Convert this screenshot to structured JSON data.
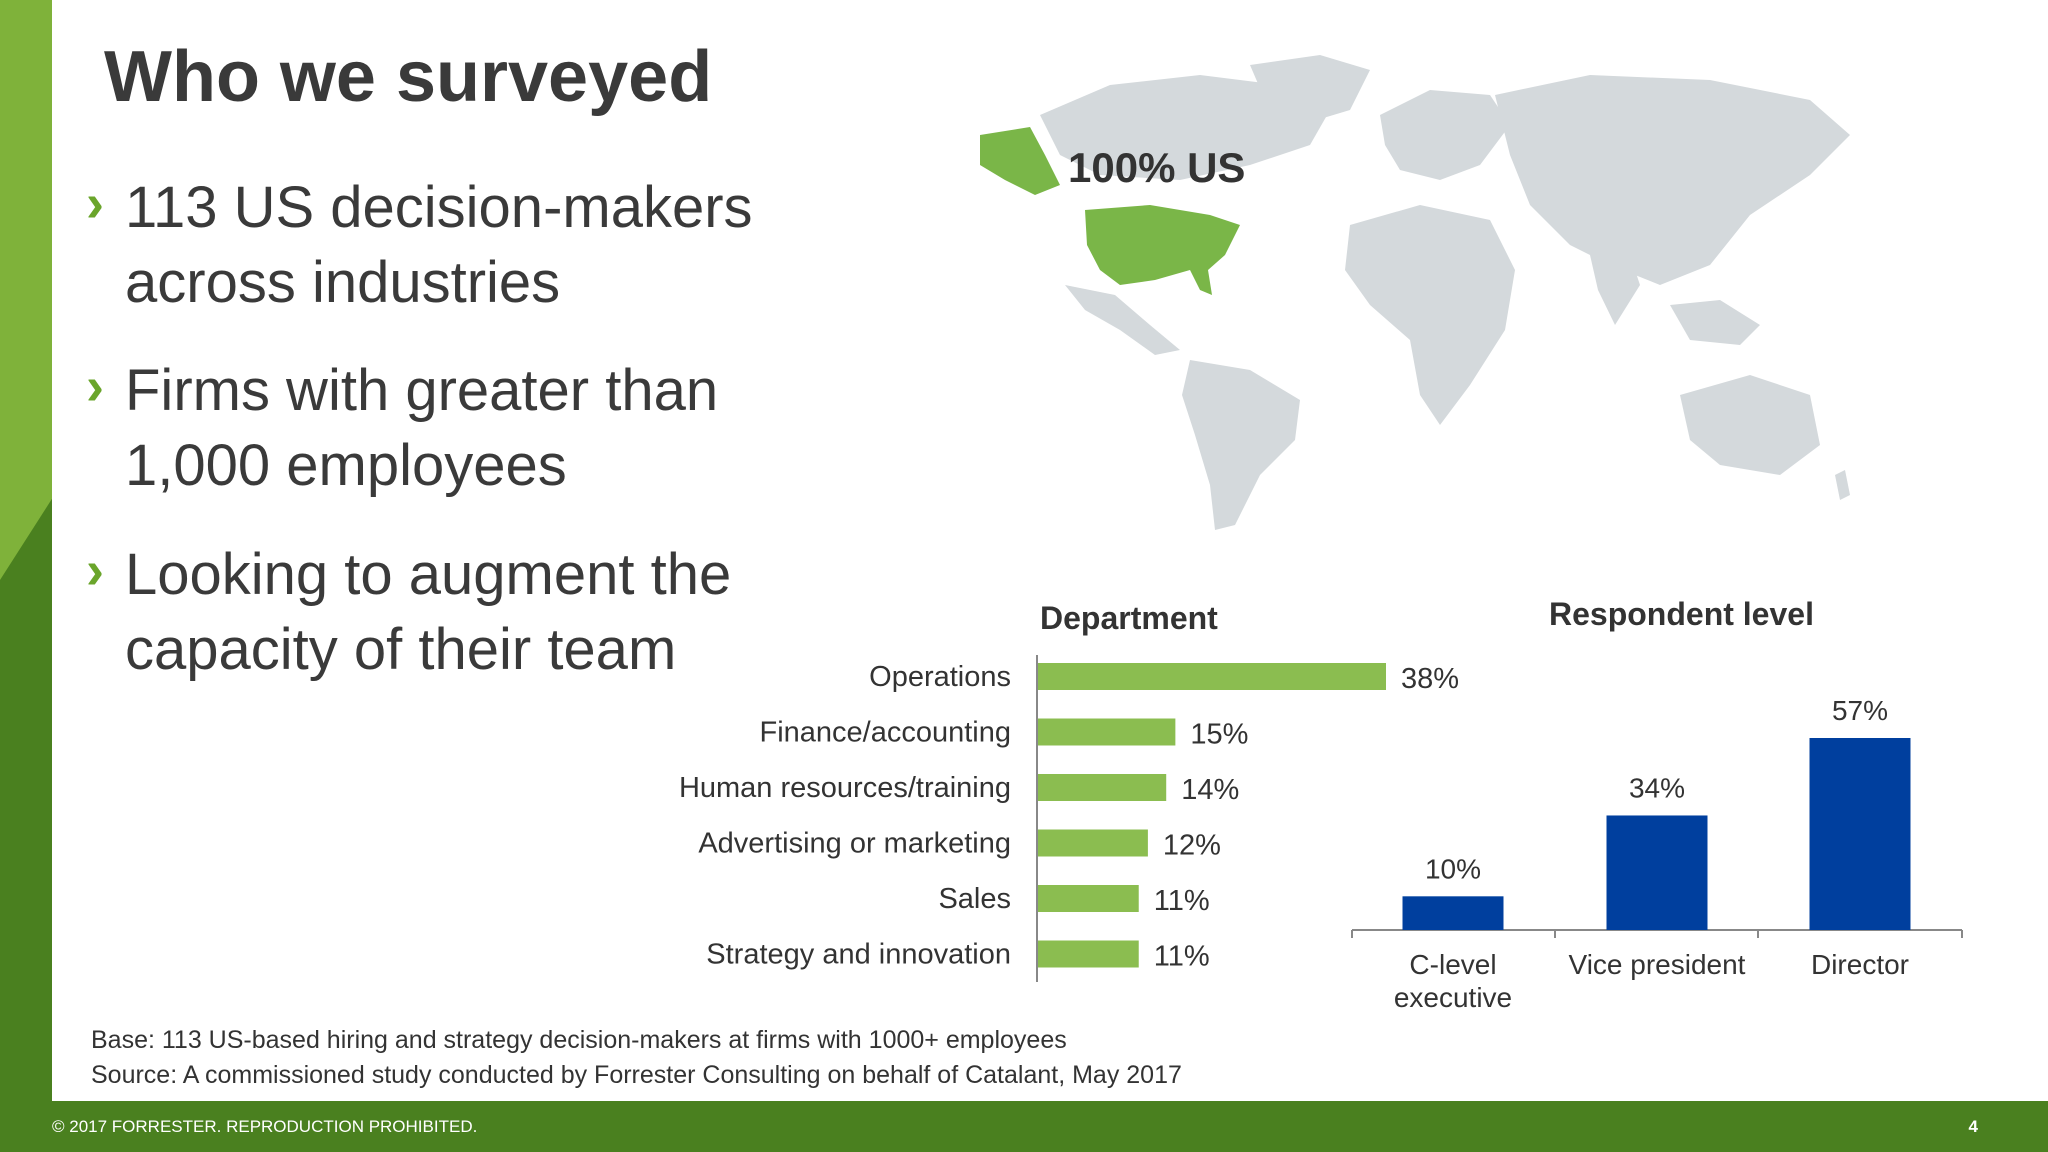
{
  "slide": {
    "title": "Who we surveyed",
    "bullets": [
      {
        "line1": "113 US decision-makers",
        "line2": "across industries"
      },
      {
        "line1": "Firms with greater than",
        "line2": "1,000 employees"
      },
      {
        "line1": "Looking to augment the",
        "line2": "capacity of their team"
      }
    ],
    "bullet_glyph": "›",
    "map_label": "100% US",
    "footnote_base": "Base: 113 US-based hiring and strategy decision-makers at firms with 1000+ employees",
    "footnote_source": "Source: A commissioned study conducted by Forrester Consulting on behalf of Catalant, May 2017",
    "copyright": "© 2017 FORRESTER. REPRODUCTION PROHIBITED.",
    "page_number": "4"
  },
  "colors": {
    "brand_green": "#4a801f",
    "bullet_green": "#6aa52b",
    "dept_bar": "#8bbd50",
    "level_bar": "#003f9e",
    "map_land": "#d4d9dc",
    "map_us": "#7ab648"
  },
  "chart_data": [
    {
      "type": "bar",
      "orientation": "horizontal",
      "title": "Department",
      "categories": [
        "Operations",
        "Finance/accounting",
        "Human resources/training",
        "Advertising or marketing",
        "Sales",
        "Strategy and innovation"
      ],
      "values": [
        38,
        15,
        14,
        12,
        11,
        11
      ],
      "labels": [
        "38%",
        "15%",
        "14%",
        "12%",
        "11%",
        "11%"
      ],
      "unit": "%"
    },
    {
      "type": "bar",
      "orientation": "vertical",
      "title": "Respondent level",
      "categories": [
        [
          "C-level",
          "executive"
        ],
        [
          "Vice president"
        ],
        [
          "Director"
        ]
      ],
      "values": [
        10,
        34,
        57
      ],
      "labels": [
        "10%",
        "34%",
        "57%"
      ],
      "unit": "%"
    }
  ]
}
